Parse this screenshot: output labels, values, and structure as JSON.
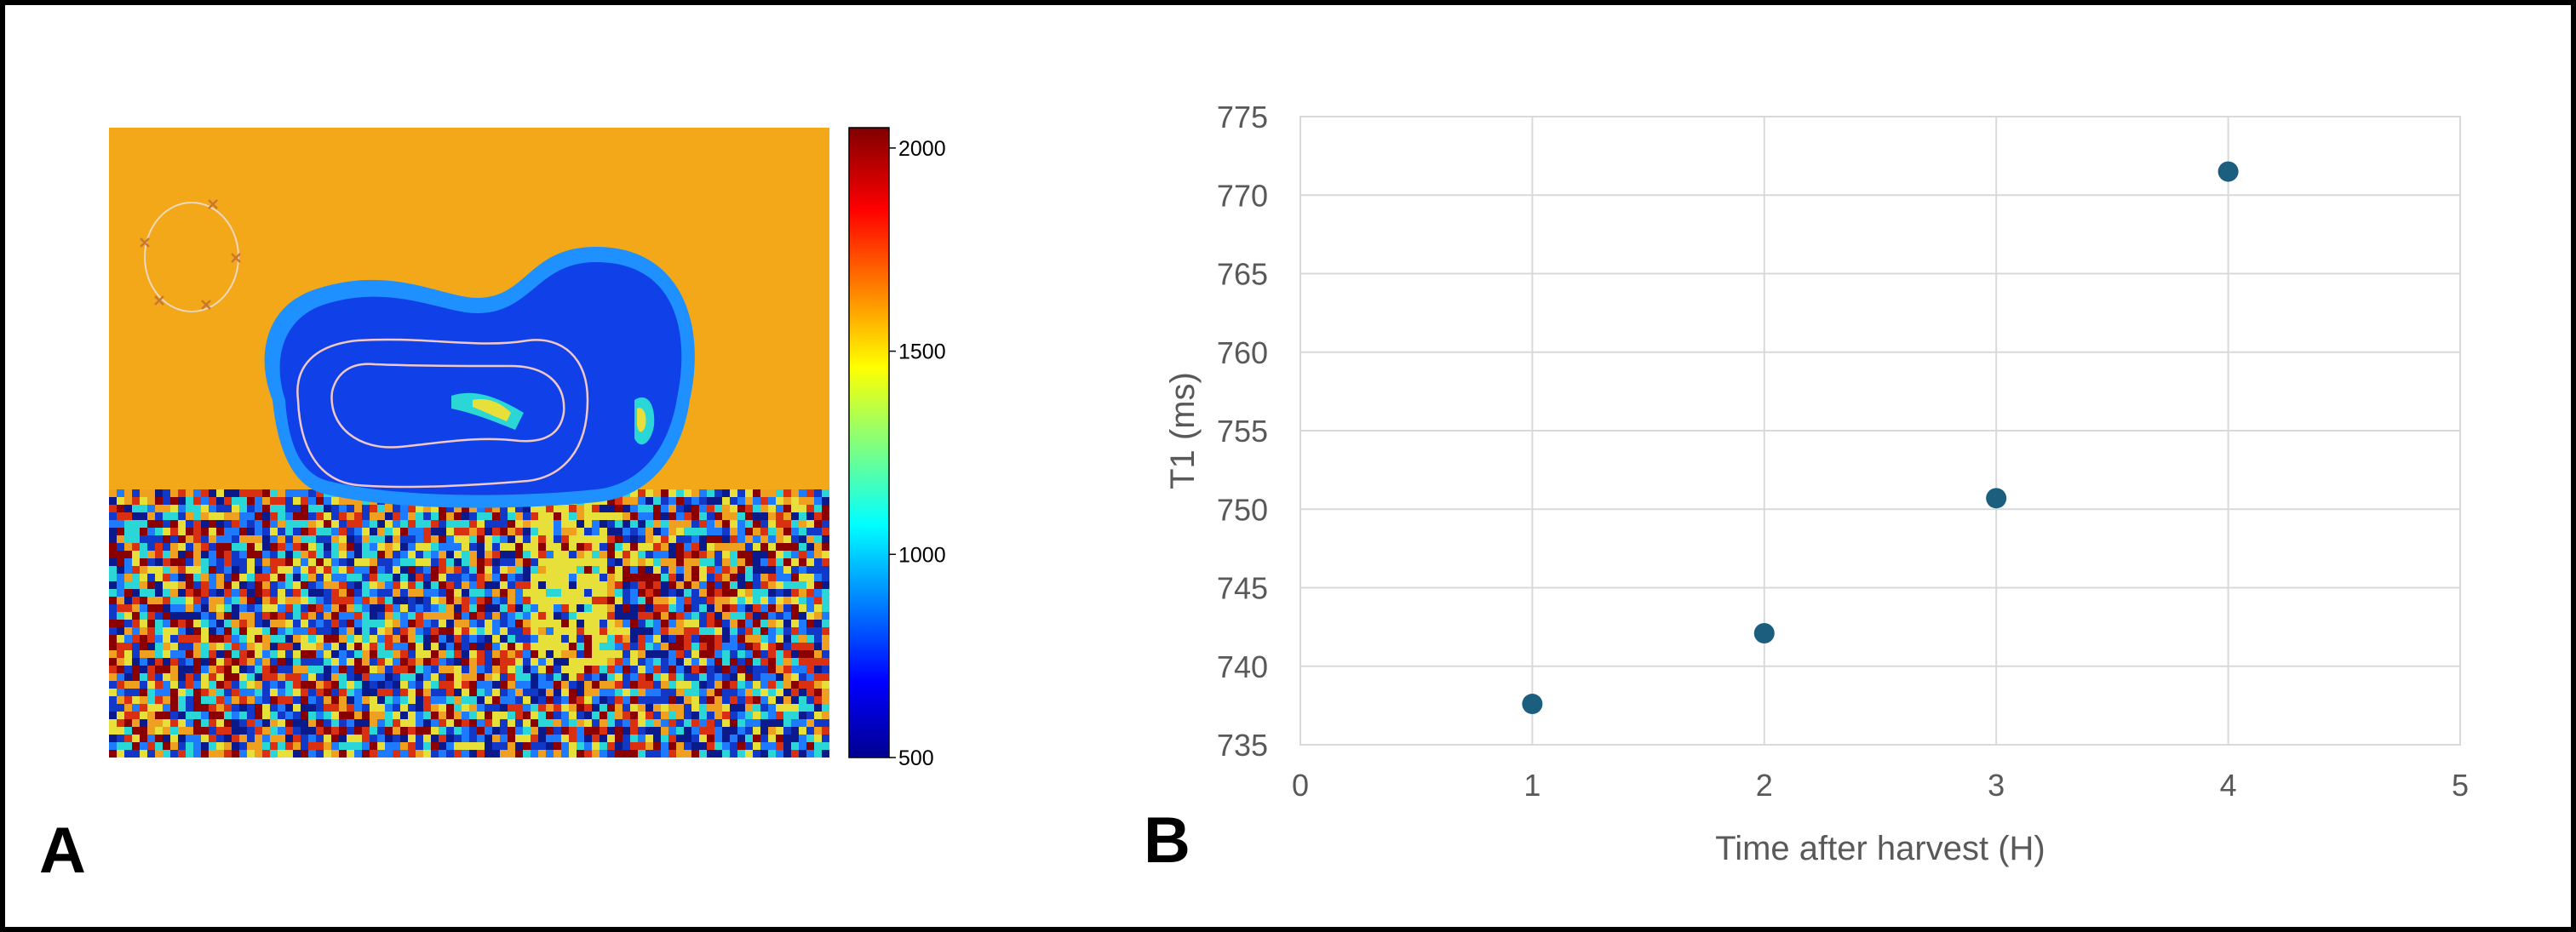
{
  "panel_a": {
    "letter": "A",
    "colorbar": {
      "ticks": [
        "2000",
        "1500",
        "1000",
        "500"
      ],
      "tick_values": [
        2000,
        1500,
        1000,
        500
      ],
      "range": [
        500,
        2050
      ],
      "colormap": "jet"
    },
    "colors": {
      "background": "#f2a818",
      "tissue": "#1040e8",
      "rim": "#1e90ff",
      "roi_contour": "#f0c8c8",
      "noise": [
        "#8a0000",
        "#0a1a8a",
        "#1e7bff",
        "#2bd6d6",
        "#e8e03a",
        "#f0a020",
        "#d83010",
        "#1238c8"
      ]
    }
  },
  "panel_b": {
    "letter": "B"
  },
  "chart_data": {
    "type": "scatter",
    "title": "",
    "xlabel": "Time after harvest (H)",
    "ylabel": "T1 (ms)",
    "xlim": [
      0,
      5
    ],
    "ylim": [
      735,
      775
    ],
    "x_ticks": [
      "0",
      "1",
      "2",
      "3",
      "4",
      "5"
    ],
    "y_ticks": [
      "775",
      "770",
      "765",
      "760",
      "755",
      "750",
      "745",
      "740",
      "735"
    ],
    "grid": true,
    "points": [
      {
        "x": 1,
        "y": 737.6
      },
      {
        "x": 2,
        "y": 742.1
      },
      {
        "x": 3,
        "y": 750.7
      },
      {
        "x": 4,
        "y": 771.5
      }
    ],
    "marker_color": "#1b5e7e",
    "gridline_color": "#d9d9d9",
    "text_color": "#595959"
  }
}
